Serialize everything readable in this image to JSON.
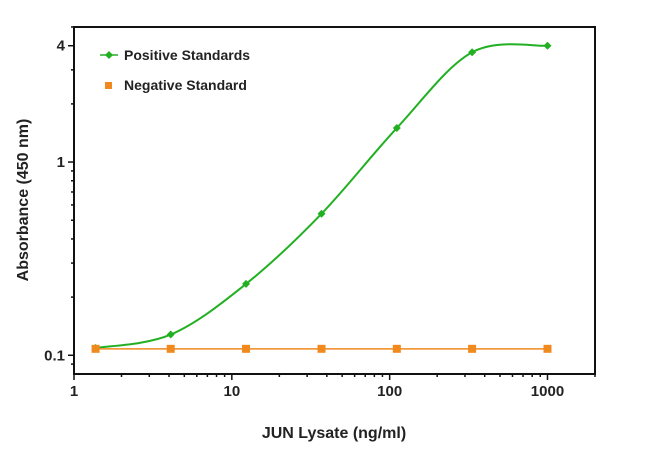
{
  "chart_data": {
    "type": "scatter",
    "title": "",
    "xlabel": "JUN Lysate (ng/ml)",
    "ylabel": "Absorbance (450 nm)",
    "xscale": "log",
    "yscale": "log",
    "xlim": [
      1,
      2000
    ],
    "ylim": [
      0.08,
      5
    ],
    "xticks": [
      1,
      10,
      100,
      1000
    ],
    "xtick_labels": [
      "1",
      "10",
      "100",
      "1000"
    ],
    "yticks": [
      0.1,
      1,
      4
    ],
    "ytick_labels": [
      "0.1",
      "1",
      "4"
    ],
    "grid": false,
    "legend_position": "top-left",
    "series": [
      {
        "name": "Positive Standards",
        "color": "#22b022",
        "marker": "diamond",
        "fit_curve": true,
        "x": [
          1.37,
          4.1,
          12.3,
          37,
          111,
          333,
          1000
        ],
        "y": [
          0.109,
          0.128,
          0.234,
          0.54,
          1.5,
          3.7,
          4.0
        ]
      },
      {
        "name": "Negative Standard",
        "color": "#f08a1e",
        "marker": "square",
        "fit_curve": false,
        "x": [
          1.37,
          4.1,
          12.3,
          37,
          111,
          333,
          1000
        ],
        "y": [
          0.108,
          0.108,
          0.108,
          0.108,
          0.108,
          0.108,
          0.108
        ]
      }
    ]
  }
}
